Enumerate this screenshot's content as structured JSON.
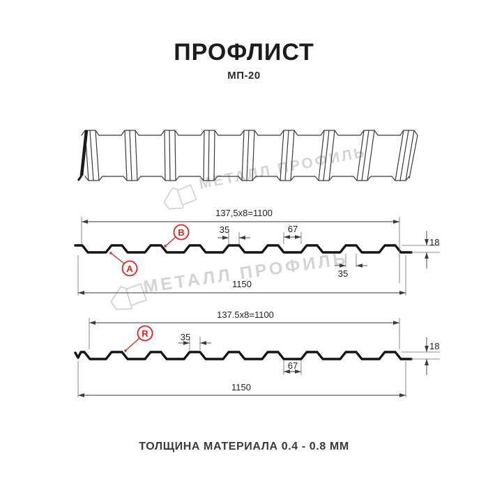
{
  "header": {
    "title": "ПРОФЛИСТ",
    "subtitle": "МП-20"
  },
  "watermark": {
    "text": "МЕТАЛЛ ПРОФИЛЬ",
    "color": "#d4d4d4"
  },
  "colors": {
    "background": "#ffffff",
    "profile_line": "#141414",
    "dimension_line": "#3a3a3a",
    "accent_red": "#e2231a",
    "watermark_gray": "#d4d4d4"
  },
  "sections": {
    "ab": {
      "labels": {
        "a": "A",
        "b": "B"
      },
      "dims": {
        "pitch_total": "137,5x8=1100",
        "rib_top": "35",
        "valley": "67",
        "rib_bottom": "35",
        "height": "18",
        "overall": "1150"
      }
    },
    "r": {
      "labels": {
        "r": "R"
      },
      "dims": {
        "pitch_total": "137.5x8=1100",
        "rib_top": "35",
        "valley": "67",
        "height": "18",
        "overall": "1150"
      }
    }
  },
  "footer": {
    "note": "ТОЛЩИНА МАТЕРИАЛА 0.4 - 0.8 ММ"
  }
}
